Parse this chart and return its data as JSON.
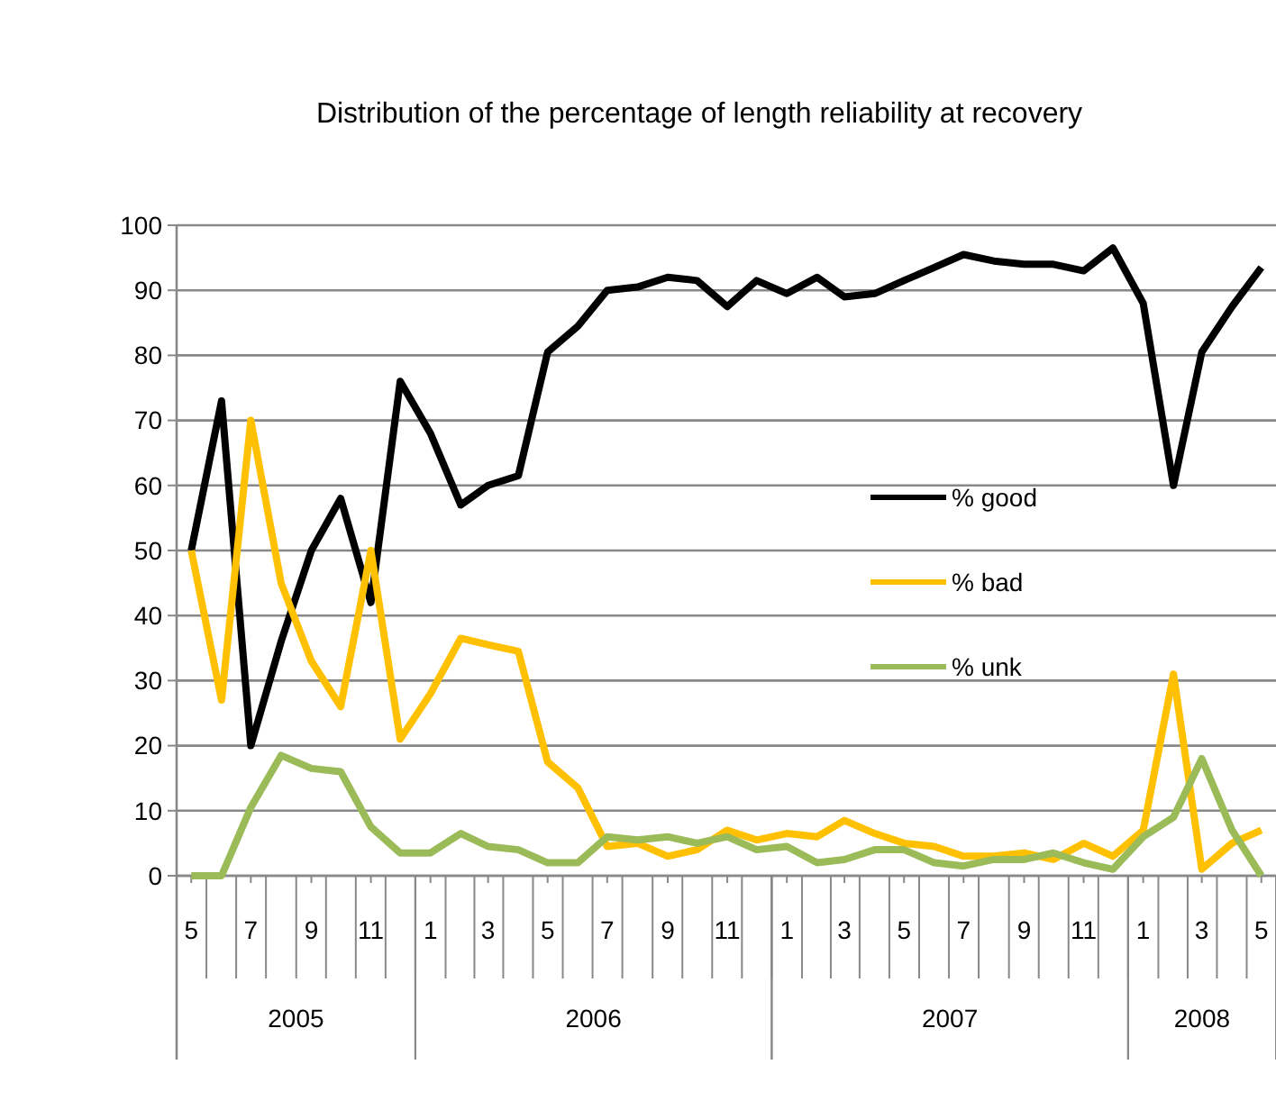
{
  "chart_data": {
    "type": "line",
    "title": "Distribution of the percentage of length reliability at recovery",
    "x": [
      "2005-05",
      "2005-06",
      "2005-07",
      "2005-08",
      "2005-09",
      "2005-10",
      "2005-11",
      "2005-12",
      "2006-01",
      "2006-02",
      "2006-03",
      "2006-04",
      "2006-05",
      "2006-06",
      "2006-07",
      "2006-08",
      "2006-09",
      "2006-10",
      "2006-11",
      "2006-12",
      "2007-01",
      "2007-02",
      "2007-03",
      "2007-04",
      "2007-05",
      "2007-06",
      "2007-07",
      "2007-08",
      "2007-09",
      "2007-10",
      "2007-11",
      "2007-12",
      "2008-01",
      "2008-02",
      "2008-03",
      "2008-04",
      "2008-05"
    ],
    "xlim": [
      "2005-04-16",
      "2008-05-16"
    ],
    "xticks": [
      {
        "value": "2005-05",
        "label": "5"
      },
      {
        "value": "2005-07",
        "label": "7"
      },
      {
        "value": "2005-09",
        "label": "9"
      },
      {
        "value": "2005-11",
        "label": "11"
      },
      {
        "value": "2006-01",
        "label": "1"
      },
      {
        "value": "2006-03",
        "label": "3"
      },
      {
        "value": "2006-05",
        "label": "5"
      },
      {
        "value": "2006-07",
        "label": "7"
      },
      {
        "value": "2006-09",
        "label": "9"
      },
      {
        "value": "2006-11",
        "label": "11"
      },
      {
        "value": "2007-01",
        "label": "1"
      },
      {
        "value": "2007-03",
        "label": "3"
      },
      {
        "value": "2007-05",
        "label": "5"
      },
      {
        "value": "2007-07",
        "label": "7"
      },
      {
        "value": "2007-09",
        "label": "9"
      },
      {
        "value": "2007-11",
        "label": "11"
      },
      {
        "value": "2008-01",
        "label": "1"
      },
      {
        "value": "2008-03",
        "label": "3"
      },
      {
        "value": "2008-05",
        "label": "5"
      }
    ],
    "annotations": [
      "2005",
      "2006",
      "2007",
      "2008"
    ],
    "ylim": [
      0,
      100
    ],
    "yticks": [
      0,
      10,
      20,
      30,
      40,
      50,
      60,
      70,
      80,
      90,
      100
    ],
    "grid": "y",
    "legend": "right",
    "marker": "none",
    "line_style": "solid",
    "series": [
      {
        "name": "% good",
        "color": "#000000",
        "values": [
          50,
          73,
          20,
          36,
          50,
          58,
          42,
          76,
          68,
          57,
          60,
          61.5,
          80.5,
          84.5,
          90,
          90.5,
          92,
          91.5,
          87.5,
          91.5,
          89.5,
          92,
          89,
          89.5,
          91.5,
          93.5,
          95.5,
          94.5,
          94,
          94,
          93,
          96.5,
          88,
          60,
          80.5,
          87.5,
          93.5
        ]
      },
      {
        "name": "% bad",
        "color": "#ffc000",
        "values": [
          50,
          27,
          70,
          45,
          33,
          26,
          50,
          21,
          28,
          36.5,
          35.5,
          34.5,
          17.5,
          13.5,
          4.5,
          5,
          3,
          4,
          7,
          5.5,
          6.5,
          6,
          8.5,
          6.5,
          5,
          4.5,
          3,
          3,
          3.5,
          2.5,
          5,
          3,
          7,
          31,
          1,
          5,
          7
        ]
      },
      {
        "name": "% unk",
        "color": "#9bbb59",
        "values": [
          0,
          0,
          10.5,
          18.5,
          16.5,
          16,
          7.5,
          3.5,
          3.5,
          6.5,
          4.5,
          4,
          2,
          2,
          6,
          5.5,
          6,
          5,
          6,
          4,
          4.5,
          2,
          2.5,
          4,
          4,
          2,
          1.5,
          2.5,
          2.5,
          3.5,
          2,
          1,
          6,
          9,
          18,
          7,
          0
        ]
      }
    ]
  }
}
